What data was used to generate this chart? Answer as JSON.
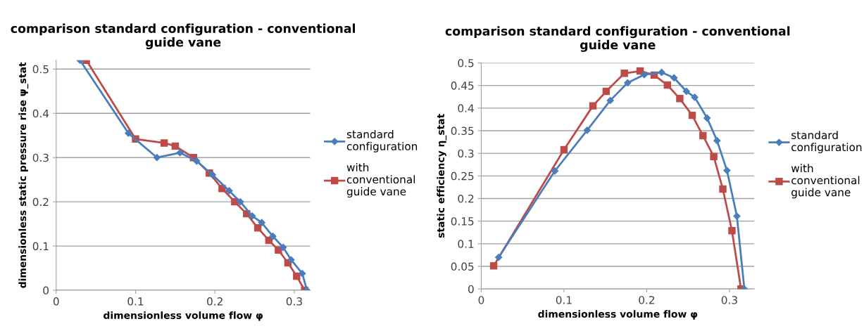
{
  "chart_data": [
    {
      "type": "line",
      "title": "comparison standard configuration - conventional guide vane",
      "xlabel": "dimensionless volume flow φ",
      "ylabel": "dimensionless static pressure rise ψ_stat",
      "xlim": [
        0,
        0.32
      ],
      "xticks": [
        0,
        0.1,
        0.2,
        0.3
      ],
      "ylim": [
        0,
        0.52
      ],
      "yticks": [
        0,
        0.1,
        0.2,
        0.3,
        0.4,
        0.5
      ],
      "grid": "y",
      "legend": "right",
      "series": [
        {
          "name": "standard configuration",
          "color": "#4a7ebb",
          "marker": "diamond",
          "x": [
            0.03,
            0.091,
            0.127,
            0.156,
            0.177,
            0.197,
            0.218,
            0.232,
            0.247,
            0.259,
            0.273,
            0.286,
            0.296,
            0.31,
            0.316
          ],
          "values": [
            0.52,
            0.355,
            0.3,
            0.311,
            0.292,
            0.261,
            0.225,
            0.2,
            0.168,
            0.153,
            0.122,
            0.097,
            0.069,
            0.038,
            0
          ]
        },
        {
          "name": "with conventional guide vane",
          "color": "#be4b48",
          "marker": "square",
          "x": [
            0.038,
            0.1,
            0.136,
            0.15,
            0.173,
            0.193,
            0.209,
            0.225,
            0.24,
            0.254,
            0.268,
            0.28,
            0.292,
            0.303,
            0.313
          ],
          "values": [
            0.52,
            0.342,
            0.333,
            0.326,
            0.3,
            0.265,
            0.23,
            0.2,
            0.173,
            0.141,
            0.113,
            0.091,
            0.062,
            0.032,
            0
          ]
        }
      ]
    },
    {
      "type": "line",
      "title": "comparison standard configuration - conventional guide vane",
      "xlabel": "dimensionless volume flow φ",
      "ylabel": "static efficiency η_stat",
      "xlim": [
        0,
        0.33
      ],
      "xticks": [
        0,
        0.1,
        0.2,
        0.3
      ],
      "ylim": [
        0,
        0.5
      ],
      "yticks": [
        0,
        0.05,
        0.1,
        0.15,
        0.2,
        0.25,
        0.3,
        0.35,
        0.4,
        0.45,
        0.5
      ],
      "grid": "y",
      "legend": "right",
      "series": [
        {
          "name": "standard configuration",
          "color": "#4a7ebb",
          "marker": "diamond",
          "x": [
            0.021,
            0.089,
            0.128,
            0.156,
            0.177,
            0.197,
            0.218,
            0.233,
            0.248,
            0.258,
            0.273,
            0.285,
            0.297,
            0.309,
            0.318
          ],
          "values": [
            0.07,
            0.261,
            0.351,
            0.417,
            0.456,
            0.474,
            0.479,
            0.467,
            0.437,
            0.424,
            0.378,
            0.328,
            0.262,
            0.161,
            0
          ]
        },
        {
          "name": "with conventional guide vane",
          "color": "#be4b48",
          "marker": "square",
          "x": [
            0.015,
            0.1,
            0.135,
            0.151,
            0.173,
            0.192,
            0.209,
            0.225,
            0.24,
            0.255,
            0.268,
            0.281,
            0.292,
            0.303,
            0.314
          ],
          "values": [
            0.051,
            0.308,
            0.405,
            0.437,
            0.477,
            0.482,
            0.473,
            0.451,
            0.421,
            0.384,
            0.339,
            0.293,
            0.221,
            0.129,
            0
          ]
        }
      ]
    }
  ]
}
